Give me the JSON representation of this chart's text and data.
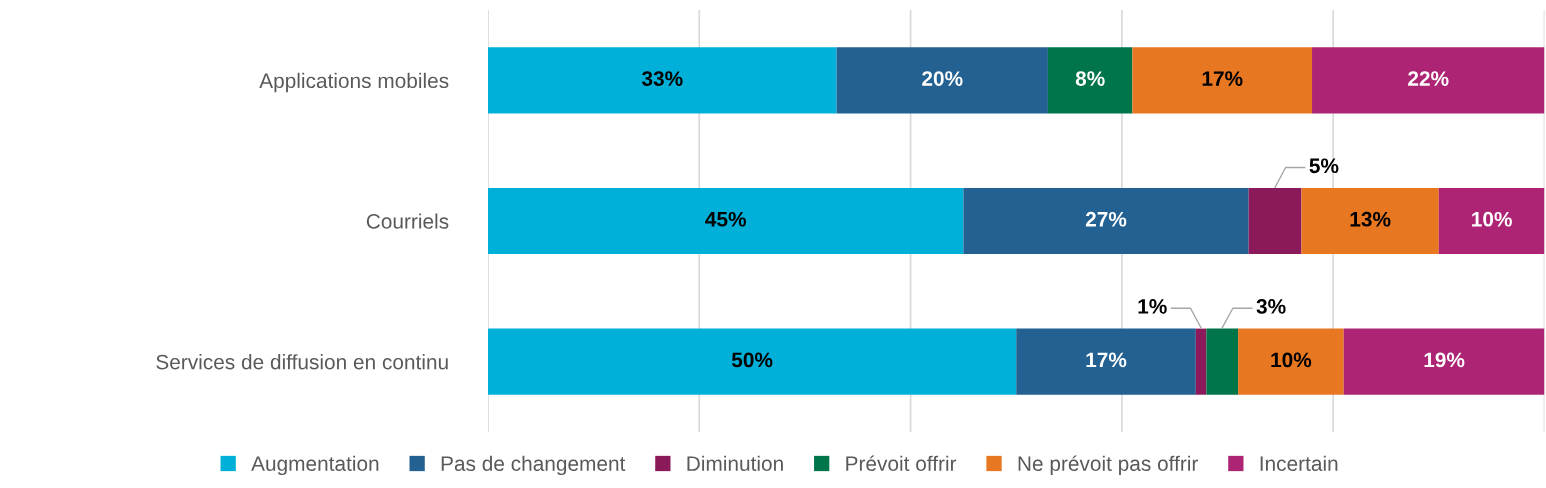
{
  "chart_data": {
    "type": "bar",
    "orientation": "horizontal",
    "stacked": true,
    "categories": [
      "Applications mobiles",
      "Courriels",
      "Services de diffusion en continu"
    ],
    "series": [
      {
        "name": "Augmentation",
        "color": "#00b0d8",
        "values": [
          33,
          45,
          50
        ],
        "value_labels": [
          "33%",
          "45%",
          "50%"
        ]
      },
      {
        "name": "Pas de changement",
        "color": "#236192",
        "values": [
          20,
          27,
          17
        ],
        "value_labels": [
          "20%",
          "27%",
          "17%"
        ]
      },
      {
        "name": "Diminution",
        "color": "#8b1a5a",
        "values": [
          null,
          5,
          1
        ],
        "value_labels": [
          null,
          "5%",
          "1%"
        ]
      },
      {
        "name": "Prévoit offrir",
        "color": "#00754a",
        "values": [
          8,
          null,
          3
        ],
        "value_labels": [
          "8%",
          null,
          "3%"
        ]
      },
      {
        "name": "Ne prévoit pas offrir",
        "color": "#e87722",
        "values": [
          17,
          13,
          10
        ],
        "value_labels": [
          "17%",
          "13%",
          "10%"
        ]
      },
      {
        "name": "Incertain",
        "color": "#ac2473",
        "values": [
          22,
          10,
          19
        ],
        "value_labels": [
          "22%",
          "10%",
          "19%"
        ]
      }
    ],
    "xlim": [
      0,
      100
    ],
    "xticks": [
      {
        "value": 0,
        "label": null
      },
      {
        "value": 20,
        "label": null
      },
      {
        "value": 40,
        "label": null
      },
      {
        "value": 60,
        "label": null
      },
      {
        "value": 80,
        "label": null
      },
      {
        "value": 100,
        "label": null
      }
    ],
    "tick_labels": "y",
    "grid": "x",
    "legend": "bottom"
  }
}
